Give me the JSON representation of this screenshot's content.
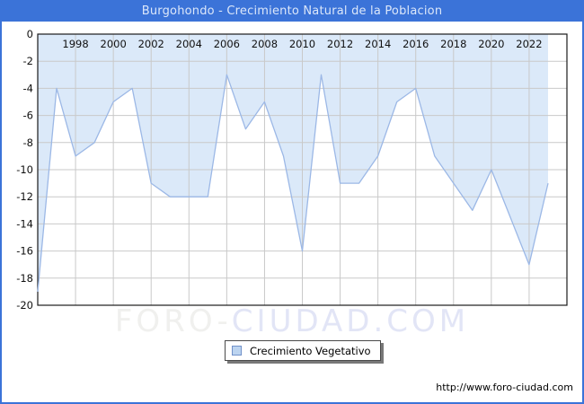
{
  "header": {
    "title": "Burgohondo - Crecimiento Natural de la Poblacion"
  },
  "chart_data": {
    "type": "area",
    "title": "Burgohondo - Crecimiento Natural de la Poblacion",
    "x": [
      1996,
      1997,
      1998,
      1999,
      2000,
      2001,
      2002,
      2003,
      2004,
      2005,
      2006,
      2007,
      2008,
      2009,
      2010,
      2011,
      2012,
      2013,
      2014,
      2015,
      2016,
      2017,
      2018,
      2019,
      2020,
      2021,
      2022,
      2023
    ],
    "series": [
      {
        "name": "Crecimiento Vegetativo",
        "values": [
          -19,
          -4,
          -9,
          -8,
          -5,
          -4,
          -11,
          -12,
          -12,
          -12,
          -3,
          -7,
          -5,
          -9,
          -16,
          -3,
          -11,
          -11,
          -9,
          -5,
          -4,
          -9,
          -11,
          -13,
          -10,
          -13.5,
          -17,
          -11
        ]
      }
    ],
    "xlabel": "",
    "ylabel": "",
    "xlim": [
      1996,
      2024
    ],
    "ylim": [
      -20,
      0
    ],
    "x_ticks": [
      1998,
      2000,
      2002,
      2004,
      2006,
      2008,
      2010,
      2012,
      2014,
      2016,
      2018,
      2020,
      2022
    ],
    "y_ticks": [
      0,
      -2,
      -4,
      -6,
      -8,
      -10,
      -12,
      -14,
      -16,
      -18,
      -20
    ],
    "grid": true,
    "fill_mode": "above-line",
    "legend_position": "bottom-center"
  },
  "legend": {
    "label": "Crecimiento Vegetativo"
  },
  "watermark": {
    "part1": "FORO-",
    "part2": "CIUDAD.COM"
  },
  "footer": {
    "url": "http://www.foro-ciudad.com"
  },
  "colors": {
    "accent_blue": "#3b73d8",
    "title_text": "#dbe7fa",
    "area_fill": "#dbe9f9",
    "line": "#9cb8e6",
    "gridline": "#c9c9c9",
    "plot_border": "#1a1a1a",
    "tick_text": "#111111",
    "legend_swatch_fill": "#bcd4f0",
    "legend_swatch_border": "#7191c9",
    "watermark_gray": "#f0f0ee",
    "watermark_blue": "#e2e5f6"
  }
}
